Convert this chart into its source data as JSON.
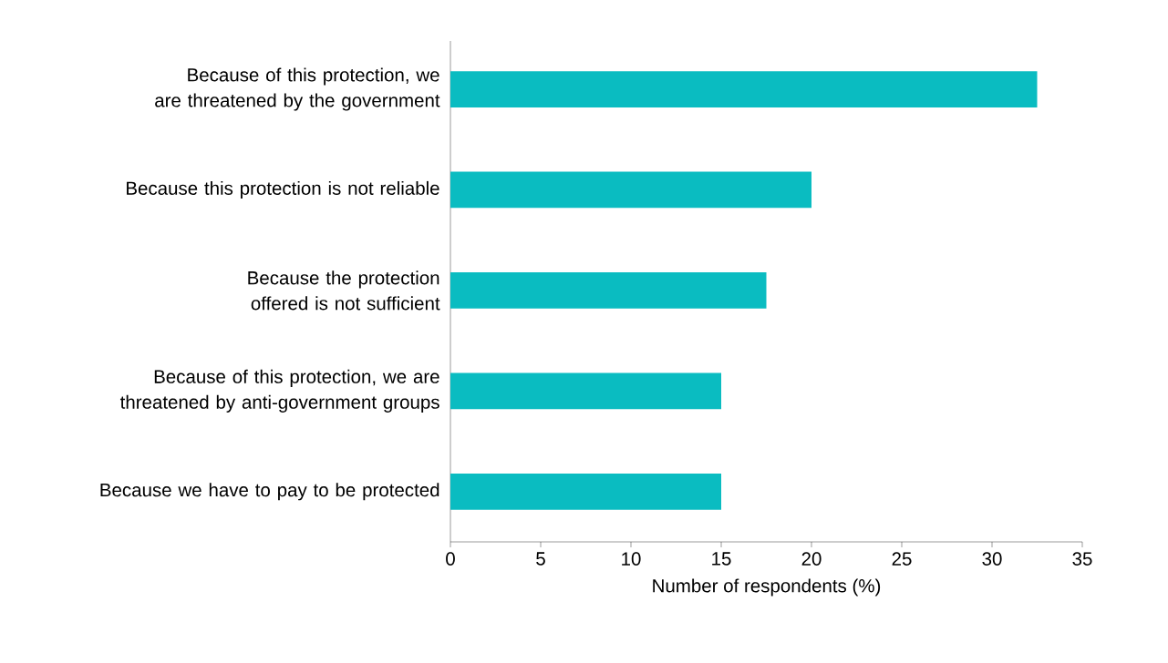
{
  "chart_data": {
    "type": "bar",
    "orientation": "horizontal",
    "xlabel": "Number of respondents (%)",
    "categories": [
      "Because of this protection, we are threatened by the government",
      "Because this protection is not reliable",
      "Because the protection offered is not sufficient",
      "Because of this protection, we are threatened by anti-government groups",
      "Because we have to pay to be protected"
    ],
    "values": [
      32.5,
      20,
      17.5,
      15,
      15
    ],
    "color": "#0abcc1",
    "xlim": [
      0,
      35
    ],
    "xticks": [
      0,
      5,
      10,
      15,
      20,
      25,
      30,
      35
    ],
    "grid": false
  }
}
